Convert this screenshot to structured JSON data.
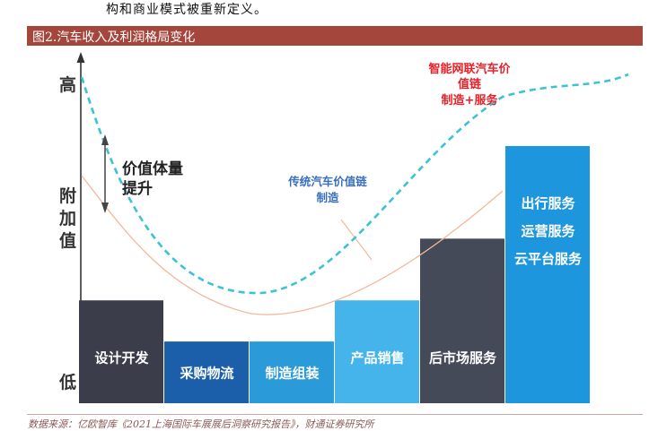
{
  "intro_text": "构和商业模式被重新定义。",
  "figure_title": "图2.汽车收入及利润格局变化",
  "source_note": "数据来源：亿欧智库《2021上海国际车展展后洞察研究报告》，财通证券研究所",
  "y_axis": {
    "high": "高",
    "mid": [
      "附",
      "加",
      "值"
    ],
    "low": "低"
  },
  "annotations": {
    "value_lift": [
      "价值体量",
      "提升"
    ],
    "traditional_chain": [
      "传统汽车价值链",
      "制造"
    ],
    "smart_chain": [
      "智能网联汽车价",
      "值链",
      "制造+服务"
    ]
  },
  "stages": [
    {
      "lines": [
        "设计开发"
      ],
      "level": 0.4,
      "color": "#3b3e4a"
    },
    {
      "lines": [
        "采购物流"
      ],
      "level": 0.24,
      "color": "#1b5faa"
    },
    {
      "lines": [
        "制造组装"
      ],
      "level": 0.24,
      "color": "#2a9bd8"
    },
    {
      "lines": [
        "产品销售"
      ],
      "level": 0.4,
      "color": "#45b4ea"
    },
    {
      "lines": [
        "后市场服务"
      ],
      "level": 0.64,
      "color": "#454a58"
    },
    {
      "lines": [
        "出行服务",
        "运营服务",
        "云平台服务"
      ],
      "level": 1.0,
      "color": "#1e96de"
    }
  ],
  "colors": {
    "traditional_curve": "#f2b99a",
    "smart_curve": "#3cc3d3",
    "arrow": "#444444",
    "smart_label": "#e8202a",
    "traditional_label": "#3a6fbd"
  }
}
